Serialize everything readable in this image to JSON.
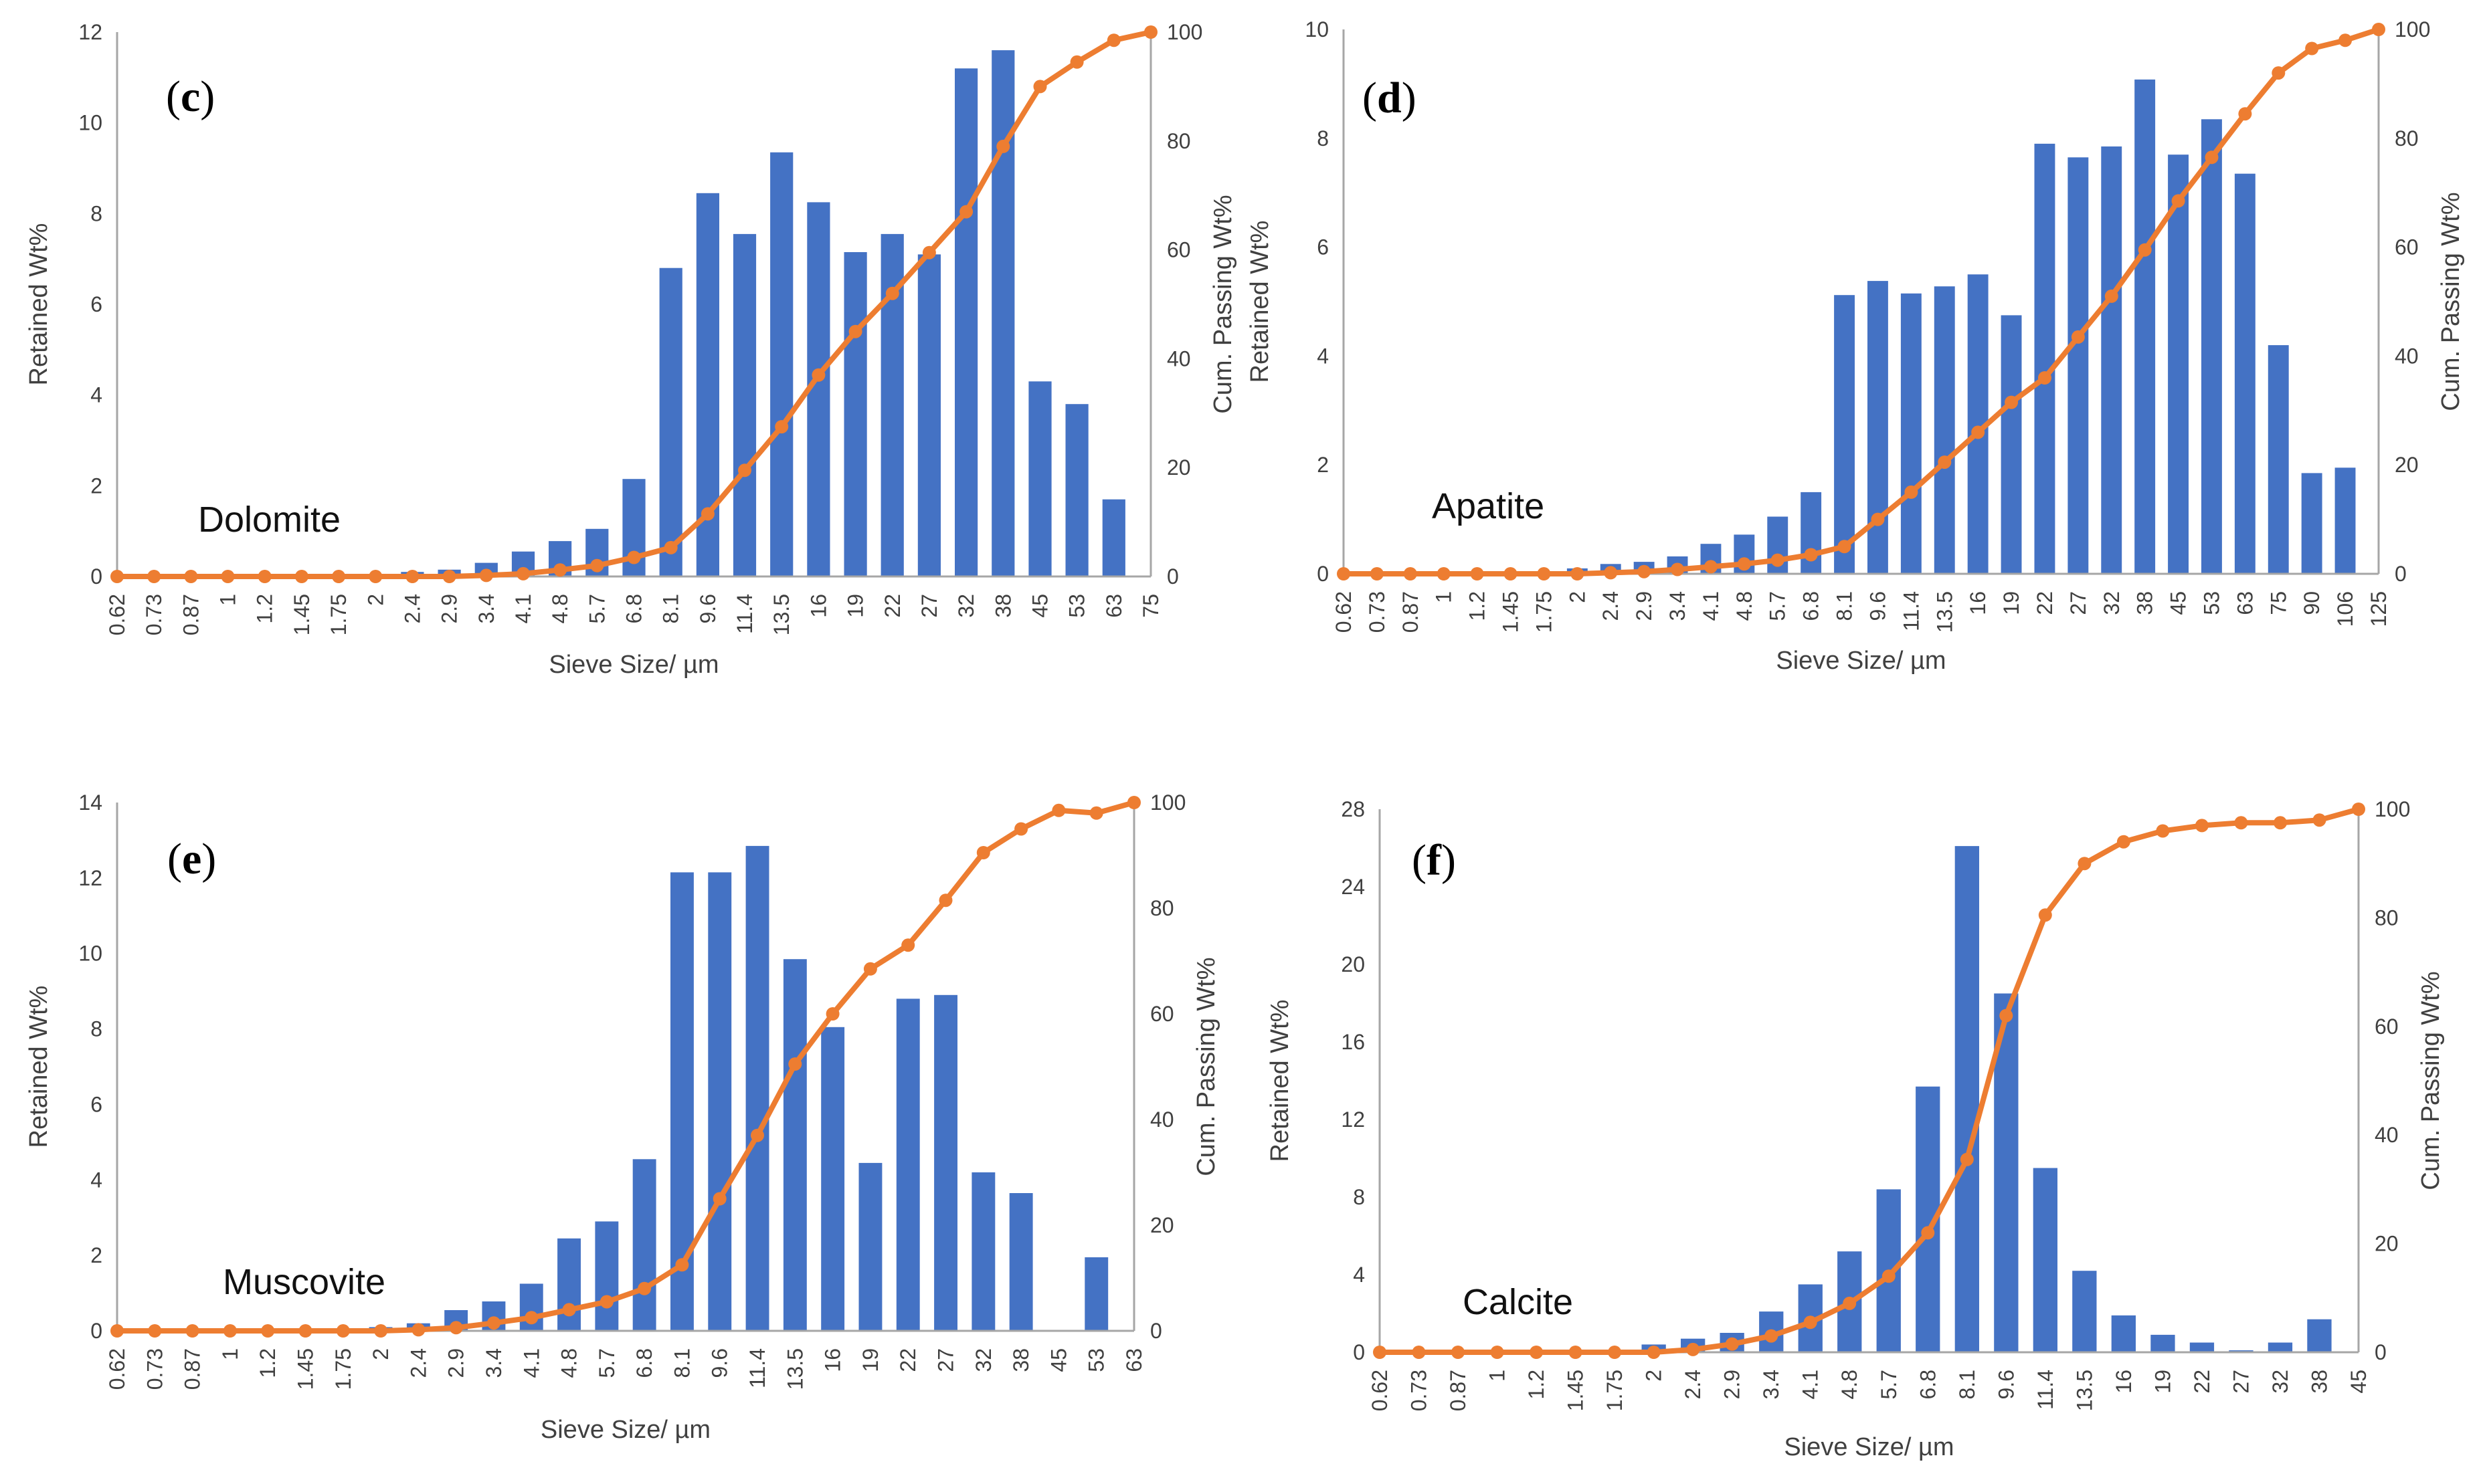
{
  "colors": {
    "bar": "#4472C4",
    "line": "#ED7D31",
    "axis": "#A6A6A6",
    "text": "#404040"
  },
  "chart_data": [
    {
      "type": "bar",
      "panel_label": "c",
      "mineral": "Dolomite",
      "title": "",
      "xlabel": "Sieve Size/ µm",
      "ylabel": "Retained Wt%",
      "y2label": "Cum. Passing Wt%",
      "ylim": [
        0,
        12
      ],
      "yticks": [
        0,
        2,
        4,
        6,
        8,
        10,
        12
      ],
      "y2lim": [
        0,
        100
      ],
      "y2ticks": [
        0,
        20,
        40,
        60,
        80,
        100
      ],
      "categories": [
        "0.62",
        "0.73",
        "0.87",
        "1",
        "1.2",
        "1.45",
        "1.75",
        "2",
        "2.4",
        "2.9",
        "3.4",
        "4.1",
        "4.8",
        "5.7",
        "6.8",
        "8.1",
        "9.6",
        "11.4",
        "13.5",
        "16",
        "19",
        "22",
        "27",
        "32",
        "38",
        "45",
        "53",
        "63",
        "75"
      ],
      "series": [
        {
          "name": "Retained Wt%",
          "kind": "bar",
          "axis": "left",
          "values": [
            0,
            0,
            0,
            0,
            0,
            0,
            0,
            0,
            0.1,
            0.15,
            0.3,
            0.55,
            0.78,
            1.05,
            2.15,
            6.8,
            8.45,
            7.55,
            9.35,
            8.25,
            7.15,
            7.55,
            7.1,
            11.2,
            11.6,
            4.3,
            3.8,
            1.7,
            0
          ]
        },
        {
          "name": "Cum. Passing Wt%",
          "kind": "line",
          "axis": "right",
          "values": [
            0,
            0,
            0,
            0,
            0,
            0,
            0,
            0,
            0,
            0,
            0.2,
            0.5,
            1.2,
            2,
            3.5,
            5.3,
            11.5,
            19.5,
            27.5,
            37,
            45,
            52,
            59.5,
            67,
            79,
            90,
            94.5,
            98.5,
            100
          ]
        }
      ]
    },
    {
      "type": "bar",
      "panel_label": "d",
      "mineral": "Apatite",
      "title": "",
      "xlabel": "Sieve Size/ µm",
      "ylabel": "Retained Wt%",
      "y2label": "Cum. Passing Wt%",
      "ylim": [
        0,
        10
      ],
      "yticks": [
        0,
        2,
        4,
        6,
        8,
        10
      ],
      "y2lim": [
        0,
        100
      ],
      "y2ticks": [
        0,
        20,
        40,
        60,
        80,
        100
      ],
      "categories": [
        "0.62",
        "0.73",
        "0.87",
        "1",
        "1.2",
        "1.45",
        "1.75",
        "2",
        "2.4",
        "2.9",
        "3.4",
        "4.1",
        "4.8",
        "5.7",
        "6.8",
        "8.1",
        "9.6",
        "11.4",
        "13.5",
        "16",
        "19",
        "22",
        "27",
        "32",
        "38",
        "45",
        "53",
        "63",
        "75",
        "90",
        "106",
        "125"
      ],
      "series": [
        {
          "name": "Retained Wt%",
          "kind": "bar",
          "axis": "left",
          "values": [
            0,
            0,
            0,
            0,
            0,
            0,
            0,
            0.1,
            0.18,
            0.22,
            0.32,
            0.55,
            0.72,
            1.05,
            1.5,
            5.12,
            5.38,
            5.15,
            5.28,
            5.5,
            4.75,
            7.9,
            7.65,
            7.85,
            9.08,
            7.7,
            8.35,
            7.35,
            4.2,
            1.85,
            1.95,
            0
          ]
        },
        {
          "name": "Cum. Passing Wt%",
          "kind": "line",
          "axis": "right",
          "values": [
            0,
            0,
            0,
            0,
            0,
            0,
            0,
            0,
            0.2,
            0.4,
            0.8,
            1.3,
            1.8,
            2.5,
            3.5,
            5,
            10,
            15,
            20.5,
            26,
            31.5,
            36,
            43.5,
            51,
            59.5,
            68.5,
            76.5,
            84.5,
            92,
            96.5,
            98,
            100
          ]
        }
      ]
    },
    {
      "type": "bar",
      "panel_label": "e",
      "mineral": "Muscovite",
      "title": "",
      "xlabel": "Sieve Size/ µm",
      "ylabel": "Retained Wt%",
      "y2label": "Cum. Passing Wt%",
      "ylim": [
        0,
        14
      ],
      "yticks": [
        0,
        2,
        4,
        6,
        8,
        10,
        12,
        14
      ],
      "y2lim": [
        0,
        100
      ],
      "y2ticks": [
        0,
        20,
        40,
        60,
        80,
        100
      ],
      "categories": [
        "0.62",
        "0.73",
        "0.87",
        "1",
        "1.2",
        "1.45",
        "1.75",
        "2",
        "2.4",
        "2.9",
        "3.4",
        "4.1",
        "4.8",
        "5.7",
        "6.8",
        "8.1",
        "9.6",
        "11.4",
        "13.5",
        "16",
        "19",
        "22",
        "27",
        "32",
        "38",
        "45",
        "53",
        "63"
      ],
      "series": [
        {
          "name": "Retained Wt%",
          "kind": "bar",
          "axis": "left",
          "values": [
            0,
            0,
            0,
            0,
            0,
            0,
            0,
            0.1,
            0.2,
            0.55,
            0.78,
            1.25,
            2.45,
            2.9,
            4.55,
            12.15,
            12.15,
            12.85,
            9.85,
            8.05,
            4.45,
            8.8,
            8.9,
            4.2,
            3.65,
            0,
            1.95,
            0
          ]
        },
        {
          "name": "Cum. Passing Wt%",
          "kind": "line",
          "axis": "right",
          "values": [
            0,
            0,
            0,
            0,
            0,
            0,
            0,
            0,
            0.2,
            0.6,
            1.5,
            2.5,
            4,
            5.5,
            8,
            12.5,
            25,
            37,
            50.5,
            60,
            68.5,
            73,
            81.5,
            90.5,
            95,
            98.5,
            98,
            100
          ]
        }
      ]
    },
    {
      "type": "bar",
      "panel_label": "f",
      "mineral": "Calcite",
      "title": "",
      "xlabel": "Sieve Size/ µm",
      "ylabel": "Retained Wt%",
      "y2label": "Cum. Passing Wt%",
      "ylim": [
        0,
        28
      ],
      "yticks": [
        0,
        4,
        8,
        12,
        16,
        20,
        24,
        28
      ],
      "y2lim": [
        0,
        100
      ],
      "y2ticks": [
        0,
        20,
        40,
        60,
        80,
        100
      ],
      "categories": [
        "0.62",
        "0.73",
        "0.87",
        "1",
        "1.2",
        "1.45",
        "1.75",
        "2",
        "2.4",
        "2.9",
        "3.4",
        "4.1",
        "4.8",
        "5.7",
        "6.8",
        "8.1",
        "9.6",
        "11.4",
        "13.5",
        "16",
        "19",
        "22",
        "27",
        "32",
        "38",
        "45"
      ],
      "series": [
        {
          "name": "Retained Wt%",
          "kind": "bar",
          "axis": "left",
          "values": [
            0,
            0,
            0,
            0,
            0,
            0,
            0,
            0.4,
            0.7,
            1,
            2.1,
            3.5,
            5.2,
            8.4,
            13.7,
            26.1,
            18.5,
            9.5,
            4.2,
            1.9,
            0.9,
            0.5,
            0.1,
            0.5,
            1.7,
            0
          ]
        },
        {
          "name": "Cum. Passing Wt%",
          "kind": "line",
          "axis": "right",
          "values": [
            0,
            0,
            0,
            0,
            0,
            0,
            0,
            0,
            0.5,
            1.5,
            3,
            5.5,
            9,
            14,
            22,
            35.5,
            62,
            80.5,
            90,
            94,
            96,
            97,
            97.5,
            97.5,
            98,
            100
          ]
        }
      ]
    }
  ]
}
